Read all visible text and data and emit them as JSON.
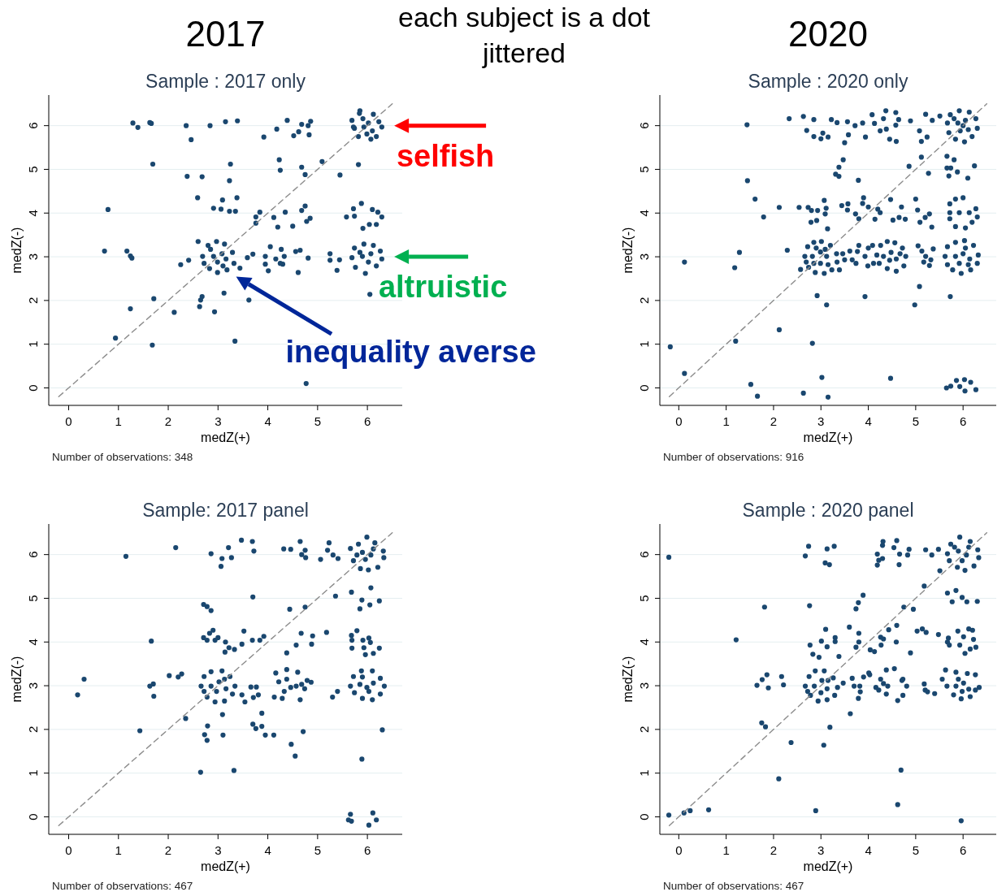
{
  "chart_data": [
    {
      "type": "scatter",
      "title": "2017",
      "subtitle": "Sample : 2017 only",
      "xlabel": "medZ(+)",
      "ylabel": "medZ(-)",
      "xlim": [
        -0.4,
        6.7
      ],
      "ylim": [
        -0.4,
        6.7
      ],
      "xticks": [
        0,
        1,
        2,
        3,
        4,
        5,
        6
      ],
      "yticks": [
        0,
        1,
        2,
        3,
        4,
        5,
        6
      ],
      "grid": "y",
      "annotations": [
        "Number of observations:  348",
        "each subject is a dot jittered",
        {
          "text": "selfish",
          "x": 6,
          "y": 6
        },
        {
          "text": "altruistic",
          "x": 6,
          "y": 3
        },
        "inequality averse"
      ],
      "series": [
        {
          "type": "scatter",
          "color": "#1a476f",
          "marker": "circle",
          "x": [
            1.29,
            1.39,
            1.63,
            1.66,
            2.36,
            2.84,
            3.15,
            3.39,
            2.46,
            3.92,
            4.18,
            4.39,
            4.68,
            4.81,
            4.86,
            4.52,
            4.62,
            4.83,
            5.85,
            5.69,
            5.74,
            5.91,
            6.12,
            6.23,
            6.29,
            6.07,
            6.18,
            5.99,
            5.82,
            6.02,
            5.93,
            6.1,
            5.84,
            5.72,
            1.69,
            3.25,
            4.23,
            4.25,
            4.68,
            4.75,
            5.09,
            5.82,
            5.45,
            2.38,
            2.68,
            3.23,
            0.79,
            2.59,
            3.09,
            3.38,
            2.91,
            3.06,
            3.23,
            3.35,
            3.84,
            3.76,
            3.76,
            4.12,
            4.2,
            4.35,
            4.5,
            4.68,
            4.75,
            4.85,
            4.78,
            5.58,
            5.74,
            5.88,
            5.72,
            6.1,
            6.21,
            6.29,
            6.04,
            5.91,
            6.18,
            0.72,
            1.17,
            1.24,
            1.27,
            2.6,
            2.25,
            2.41,
            2.69,
            2.8,
            2.97,
            3.13,
            3.29,
            3.32,
            3.18,
            2.99,
            2.83,
            2.72,
            2.91,
            3.08,
            2.99,
            3.16,
            2.85,
            3.1,
            3.44,
            3.59,
            3.7,
            3.95,
            4.01,
            4.05,
            3.95,
            4.16,
            4.27,
            4.33,
            4.25,
            4.3,
            4.56,
            4.65,
            4.81,
            4.61,
            5.25,
            5.25,
            5.44,
            5.39,
            5.69,
            5.74,
            5.93,
            6.12,
            6.26,
            6.29,
            6.18,
            5.96,
            5.76,
            5.9,
            6.07,
            6.02,
            5.85,
            6.05,
            1.71,
            1.24,
            2.12,
            2.68,
            2.65,
            2.63,
            2.93,
            3.12,
            3.62,
            0.94,
            1.68,
            3.34,
            4.77
          ],
          "values": [
            6.06,
            5.96,
            6.07,
            6.05,
            6.0,
            6.0,
            6.09,
            6.11,
            5.68,
            5.74,
            5.92,
            6.12,
            6.03,
            6.0,
            6.1,
            5.77,
            5.86,
            5.79,
            6.34,
            6.12,
            5.94,
            6.16,
            6.26,
            6.09,
            5.97,
            5.69,
            5.75,
            5.81,
            5.75,
            6.06,
            5.97,
            5.88,
            6.28,
            5.97,
            5.12,
            5.12,
            5.22,
            4.98,
            5.05,
            4.88,
            5.18,
            5.11,
            4.87,
            4.84,
            4.83,
            4.74,
            4.08,
            4.35,
            4.3,
            4.35,
            4.11,
            4.09,
            4.04,
            4.04,
            4.02,
            3.91,
            3.77,
            3.9,
            3.68,
            4.02,
            3.7,
            4.06,
            4.16,
            3.88,
            3.81,
            3.91,
            3.93,
            4.22,
            4.1,
            4.08,
            4.02,
            3.91,
            3.74,
            3.65,
            3.74,
            3.13,
            3.13,
            3.02,
            2.97,
            3.35,
            2.82,
            2.92,
            3.01,
            3.26,
            3.35,
            3.29,
            3.1,
            2.85,
            2.7,
            2.64,
            2.73,
            2.85,
            3.01,
            3.07,
            2.88,
            2.95,
            3.17,
            2.79,
            2.74,
            2.98,
            3.06,
            3.01,
            2.68,
            3.23,
            2.83,
            2.95,
            3.17,
            3.01,
            2.85,
            2.83,
            3.12,
            3.15,
            2.97,
            2.64,
            3.07,
            2.92,
            2.93,
            2.69,
            2.98,
            3.2,
            3.29,
            3.26,
            3.13,
            2.95,
            2.79,
            2.62,
            2.76,
            3.01,
            3.07,
            2.88,
            3.1,
            2.14,
            2.04,
            1.81,
            1.73,
            2.09,
            2.01,
            1.86,
            1.74,
            2.17,
            2.01,
            1.14,
            0.98,
            1.07,
            0.1
          ]
        },
        {
          "type": "line",
          "color": "#8c8c8c",
          "line_style": "dashed",
          "x": [
            -0.2,
            6.5
          ],
          "values": [
            -0.2,
            6.5
          ]
        }
      ]
    },
    {
      "type": "scatter",
      "title": "2020",
      "subtitle": "Sample : 2020 only",
      "xlabel": "medZ(+)",
      "ylabel": "medZ(-)",
      "xlim": [
        -0.4,
        6.7
      ],
      "ylim": [
        -0.4,
        6.7
      ],
      "xticks": [
        0,
        1,
        2,
        3,
        4,
        5,
        6
      ],
      "yticks": [
        0,
        1,
        2,
        3,
        4,
        5,
        6
      ],
      "grid": "y",
      "annotations": [
        "Number of observations:  916"
      ],
      "series": [
        {
          "type": "scatter",
          "color": "#1a476f",
          "marker": "circle",
          "x": [
            1.44,
            2.33,
            2.63,
            2.85,
            3.22,
            3.34,
            3.56,
            3.72,
            3.88,
            4.08,
            4.13,
            4.37,
            4.32,
            4.58,
            4.58,
            4.64,
            4.89,
            5.21,
            5.35,
            5.51,
            2.7,
            2.85,
            3.0,
            3.04,
            3.15,
            3.5,
            3.58,
            3.94,
            4.25,
            4.38,
            4.45,
            4.59,
            5.08,
            5.12,
            5.24,
            5.67,
            5.73,
            5.92,
            6.13,
            6.27,
            6.3,
            6.19,
            6.03,
            5.84,
            5.7,
            5.89,
            6.05,
            6.11,
            5.94,
            5.81,
            6.0,
            3.47,
            3.38,
            3.31,
            3.38,
            3.79,
            1.45,
            4.86,
            5.12,
            5.27,
            5.66,
            5.81,
            5.66,
            5.74,
            5.7,
            5.88,
            6.1,
            6.24,
            1.61,
            1.79,
            2.12,
            2.54,
            2.73,
            2.8,
            2.93,
            3.07,
            3.11,
            3.09,
            2.79,
            2.91,
            3.14,
            3.44,
            3.57,
            3.56,
            3.73,
            3.8,
            3.9,
            3.88,
            4.0,
            4.14,
            4.2,
            4.25,
            4.47,
            4.52,
            4.65,
            4.7,
            4.78,
            5.0,
            5.04,
            5.09,
            5.2,
            5.29,
            5.34,
            5.72,
            5.72,
            5.72,
            5.84,
            6.0,
            5.92,
            5.84,
            6.05,
            6.13,
            6.27,
            6.19,
            6.3,
            0.12,
            1.18,
            1.28,
            2.29,
            2.57,
            2.66,
            2.72,
            2.85,
            3.01,
            3.2,
            3.33,
            3.34,
            3.23,
            3.07,
            2.88,
            2.74,
            2.82,
            2.99,
            3.12,
            2.99,
            2.85,
            3.15,
            2.9,
            3.09,
            2.69,
            3.46,
            3.5,
            3.61,
            3.66,
            3.74,
            3.77,
            3.8,
            3.93,
            3.99,
            4.0,
            4.09,
            4.11,
            4.18,
            4.26,
            4.4,
            4.56,
            4.72,
            4.79,
            4.75,
            4.59,
            4.4,
            4.23,
            4.32,
            4.48,
            4.59,
            4.45,
            4.67,
            3.39,
            5.05,
            5.13,
            5.21,
            5.17,
            5.29,
            5.32,
            5.37,
            5.62,
            5.67,
            5.84,
            6.03,
            6.22,
            6.32,
            6.3,
            6.16,
            5.96,
            5.78,
            5.67,
            5.84,
            6.0,
            6.14,
            5.92,
            6.05,
            6.11,
            2.92,
            3.12,
            3.93,
            5.08,
            4.98,
            5.73,
            -0.18,
            2.12,
            1.2,
            2.82,
            0.12,
            1.52,
            1.66,
            2.63,
            3.02,
            3.15,
            4.47,
            5.65,
            5.74,
            5.86,
            5.93,
            6.03,
            6.04,
            6.16,
            6.27
          ],
          "values": [
            6.02,
            6.16,
            6.21,
            6.14,
            6.14,
            6.07,
            6.09,
            6.0,
            6.06,
            6.25,
            6.05,
            6.34,
            6.16,
            6.3,
            6.01,
            6.14,
            6.11,
            6.26,
            6.12,
            6.22,
            5.89,
            5.75,
            5.7,
            5.83,
            5.74,
            5.61,
            5.79,
            5.74,
            5.88,
            5.92,
            5.69,
            5.64,
            5.88,
            5.64,
            5.74,
            6.06,
            6.25,
            6.34,
            6.31,
            6.16,
            5.94,
            5.75,
            5.63,
            5.69,
            5.84,
            6.06,
            6.12,
            5.91,
            5.88,
            6.16,
            6.0,
            5.22,
            5.05,
            4.89,
            4.84,
            4.75,
            4.74,
            5.07,
            5.28,
            4.91,
            5.3,
            5.22,
            5.03,
            5.03,
            4.85,
            4.94,
            4.8,
            5.08,
            4.32,
            3.91,
            4.13,
            4.13,
            4.13,
            4.06,
            4.06,
            4.29,
            4.11,
            3.98,
            3.79,
            3.83,
            3.64,
            4.17,
            4.21,
            4.07,
            3.98,
            3.87,
            4.35,
            4.22,
            4.14,
            3.86,
            4.09,
            4.01,
            4.31,
            3.84,
            3.9,
            4.14,
            3.86,
            4.32,
            4.07,
            3.79,
            3.9,
            3.98,
            3.68,
            4.21,
            4.01,
            3.87,
            4.32,
            4.35,
            4.01,
            3.69,
            3.66,
            4.01,
            4.1,
            3.79,
            3.91,
            2.88,
            2.75,
            3.1,
            3.15,
            2.71,
            3.01,
            3.23,
            3.33,
            3.35,
            3.26,
            3.07,
            2.88,
            2.7,
            2.62,
            2.64,
            2.76,
            3.01,
            3.11,
            3.01,
            2.85,
            2.85,
            2.82,
            3.2,
            3.17,
            2.88,
            3.07,
            2.93,
            3.13,
            2.93,
            2.85,
            3.12,
            3.26,
            3.01,
            2.79,
            3.2,
            3.26,
            2.85,
            3.04,
            3.26,
            3.35,
            3.32,
            3.2,
            3.01,
            2.79,
            2.67,
            2.73,
            2.85,
            3.01,
            3.1,
            2.95,
            2.92,
            3.07,
            2.7,
            3.25,
            3.13,
            3.01,
            2.88,
            2.8,
            2.93,
            3.18,
            3.01,
            3.23,
            3.33,
            3.37,
            3.26,
            3.04,
            2.85,
            2.7,
            2.62,
            2.7,
            2.82,
            3.01,
            3.07,
            2.95,
            2.85,
            3.2,
            2.82,
            2.11,
            1.9,
            2.09,
            2.32,
            1.9,
            2.09,
            0.94,
            1.33,
            1.07,
            1.02,
            0.33,
            0.08,
            -0.19,
            -0.12,
            0.24,
            -0.21,
            0.22,
            0.0,
            0.04,
            0.17,
            0.03,
            0.19,
            -0.07,
            0.13,
            -0.04
          ]
        },
        {
          "type": "line",
          "color": "#8c8c8c",
          "line_style": "dashed",
          "x": [
            -0.2,
            6.5
          ],
          "values": [
            -0.2,
            6.5
          ]
        }
      ]
    },
    {
      "type": "scatter",
      "subtitle": "Sample: 2017 panel",
      "xlabel": "medZ(+)",
      "ylabel": "medZ(-)",
      "xlim": [
        -0.4,
        6.7
      ],
      "ylim": [
        -0.4,
        6.7
      ],
      "xticks": [
        0,
        1,
        2,
        3,
        4,
        5,
        6
      ],
      "yticks": [
        0,
        1,
        2,
        3,
        4,
        5,
        6
      ],
      "grid": "y",
      "annotations": [
        "Number of observations:  467"
      ],
      "series": [
        {
          "type": "scatter",
          "color": "#1a476f",
          "marker": "circle",
          "x": [
            1.15,
            2.15,
            2.86,
            3.08,
            3.06,
            3.21,
            3.27,
            3.47,
            3.69,
            3.72,
            4.32,
            4.46,
            4.65,
            4.68,
            4.75,
            4.76,
            5.06,
            5.23,
            5.2,
            5.31,
            5.41,
            5.66,
            5.82,
            5.99,
            6.15,
            6.32,
            6.33,
            6.21,
            6.02,
            5.86,
            5.72,
            5.9,
            6.07,
            5.96,
            5.79,
            6.12,
            3.7,
            2.71,
            2.78,
            2.86,
            4.44,
            4.75,
            5.36,
            5.68,
            6.07,
            5.89,
            5.85,
            6.05,
            6.24,
            1.66,
            2.71,
            2.83,
            2.9,
            2.78,
            2.94,
            3.0,
            3.15,
            3.22,
            3.14,
            3.33,
            3.48,
            3.52,
            3.69,
            3.84,
            3.92,
            4.38,
            4.57,
            4.67,
            4.88,
            4.9,
            5.18,
            5.68,
            5.69,
            5.69,
            5.79,
            5.91,
            5.93,
            6.03,
            6.06,
            6.12,
            5.96,
            6.24,
            0.18,
            0.31,
            1.63,
            1.71,
            1.7,
            2.02,
            2.2,
            2.27,
            2.66,
            2.72,
            2.86,
            3.08,
            3.24,
            3.34,
            3.29,
            3.13,
            2.94,
            2.78,
            2.86,
            3.02,
            3.16,
            2.97,
            3.13,
            2.72,
            3.48,
            3.54,
            3.66,
            3.77,
            3.71,
            3.81,
            4.13,
            4.29,
            4.16,
            4.38,
            4.6,
            4.79,
            4.87,
            4.74,
            4.65,
            4.33,
            4.22,
            4.38,
            4.57,
            4.46,
            4.68,
            5.3,
            5.4,
            5.66,
            5.72,
            5.88,
            6.1,
            6.26,
            6.34,
            6.26,
            6.1,
            5.9,
            5.74,
            5.85,
            5.99,
            6.12,
            6.03,
            5.9,
            2.35,
            1.43,
            2.79,
            2.73,
            2.78,
            3.09,
            3.1,
            3.7,
            3.76,
            3.88,
            3.88,
            3.95,
            4.12,
            4.47,
            4.55,
            4.71,
            6.3,
            5.89,
            2.65,
            3.32,
            5.66,
            5.62,
            5.68,
            6.11,
            6.18,
            6.03
          ],
          "values": [
            5.96,
            6.16,
            6.02,
            5.91,
            5.73,
            6.16,
            5.93,
            6.33,
            6.3,
            6.08,
            6.13,
            6.12,
            6.3,
            6.0,
            6.1,
            5.93,
            5.89,
            6.27,
            6.1,
            5.99,
            5.91,
            6.14,
            6.24,
            6.4,
            6.27,
            6.08,
            5.93,
            5.71,
            5.65,
            5.68,
            5.86,
            6.05,
            5.99,
            5.89,
            5.99,
            6.13,
            5.03,
            4.86,
            4.81,
            4.72,
            4.75,
            4.8,
            5.05,
            5.14,
            5.24,
            4.96,
            4.76,
            4.85,
            4.94,
            4.02,
            4.1,
            4.2,
            4.27,
            4.04,
            4.04,
            4.1,
            4.0,
            3.87,
            3.77,
            3.83,
            3.95,
            4.25,
            4.04,
            4.04,
            4.13,
            3.75,
            3.93,
            4.2,
            3.95,
            4.14,
            4.22,
            4.15,
            4.04,
            3.86,
            4.26,
            4.04,
            3.87,
            4.09,
            3.99,
            3.74,
            3.71,
            3.86,
            2.79,
            3.15,
            2.99,
            2.76,
            3.04,
            3.23,
            3.2,
            3.27,
            2.99,
            3.21,
            3.32,
            3.34,
            3.21,
            2.99,
            2.81,
            2.65,
            2.63,
            2.74,
            2.99,
            3.09,
            2.93,
            2.87,
            3.15,
            2.87,
            2.79,
            2.63,
            2.97,
            2.97,
            2.73,
            2.79,
            2.74,
            2.71,
            3.29,
            3.37,
            3.31,
            3.12,
            3.08,
            2.93,
            2.68,
            2.87,
            3.09,
            3.15,
            2.99,
            2.96,
            3.03,
            2.74,
            2.87,
            2.99,
            3.21,
            3.34,
            3.34,
            3.17,
            2.99,
            2.81,
            2.68,
            2.71,
            2.84,
            3.03,
            2.96,
            3.06,
            2.87,
            3.2,
            2.25,
            1.97,
            2.08,
            1.88,
            1.75,
            2.34,
            1.87,
            2.12,
            2.02,
            2.37,
            2.07,
            1.87,
            1.87,
            1.66,
            1.39,
            1.95,
            1.99,
            1.32,
            1.02,
            1.06,
            0.06,
            -0.07,
            -0.1,
            0.09,
            -0.07,
            -0.19
          ]
        },
        {
          "type": "line",
          "color": "#8c8c8c",
          "line_style": "dashed",
          "x": [
            -0.2,
            6.5
          ],
          "values": [
            -0.2,
            6.5
          ]
        }
      ]
    },
    {
      "type": "scatter",
      "subtitle": "Sample : 2020 panel",
      "xlabel": "medZ(+)",
      "ylabel": "medZ(-)",
      "xlim": [
        -0.4,
        6.7
      ],
      "ylim": [
        -0.4,
        6.7
      ],
      "xticks": [
        0,
        1,
        2,
        3,
        4,
        5,
        6
      ],
      "yticks": [
        0,
        1,
        2,
        3,
        4,
        5,
        6
      ],
      "grid": "y",
      "annotations": [
        "Number of observations:  467"
      ],
      "series": [
        {
          "type": "scatter",
          "color": "#1a476f",
          "marker": "circle",
          "x": [
            -0.21,
            2.67,
            2.74,
            3.09,
            3.13,
            3.18,
            3.28,
            4.19,
            4.22,
            4.19,
            4.3,
            4.3,
            4.31,
            4.54,
            4.6,
            4.66,
            4.65,
            4.83,
            4.86,
            5.21,
            5.34,
            5.48,
            5.51,
            5.67,
            5.74,
            5.93,
            6.15,
            6.31,
            6.33,
            6.23,
            6.04,
            5.88,
            5.71,
            5.9,
            6.07,
            5.98,
            5.82,
            6.12,
            2.76,
            1.81,
            3.89,
            3.79,
            3.74,
            4.75,
            4.95,
            5.18,
            5.67,
            5.85,
            5.77,
            5.98,
            6.08,
            6.3,
            1.21,
            2.77,
            2.83,
            2.96,
            3.01,
            3.1,
            3.13,
            3.3,
            3.3,
            3.38,
            3.6,
            3.74,
            3.8,
            3.8,
            4.04,
            4.13,
            4.26,
            4.27,
            4.32,
            4.43,
            4.6,
            4.59,
            4.89,
            5.03,
            5.14,
            5.22,
            5.48,
            5.67,
            5.69,
            5.71,
            5.89,
            5.93,
            6.01,
            6.12,
            6.2,
            6.22,
            6.15,
            6.27,
            6.04,
            1.65,
            1.76,
            1.86,
            1.89,
            2.17,
            2.21,
            2.67,
            2.75,
            2.88,
            3.07,
            3.26,
            3.35,
            3.29,
            3.13,
            2.94,
            2.78,
            2.86,
            3.02,
            3.13,
            3.0,
            3.15,
            2.72,
            3.47,
            3.66,
            3.7,
            3.82,
            3.83,
            3.79,
            3.62,
            3.9,
            4.01,
            4.03,
            4.16,
            4.26,
            4.38,
            4.55,
            4.73,
            4.81,
            4.73,
            4.62,
            4.38,
            4.22,
            4.32,
            4.41,
            4.71,
            5.18,
            5.2,
            5.25,
            5.4,
            5.56,
            5.66,
            5.63,
            5.85,
            6.09,
            6.26,
            6.34,
            6.26,
            6.15,
            5.96,
            5.8,
            5.85,
            6.01,
            6.12,
            5.9,
            5.98,
            1.75,
            1.83,
            2.37,
            3.06,
            3.19,
            2.11,
            4.69,
            -0.21,
            0.11,
            0.24,
            0.63,
            2.89,
            4.62,
            5.96
          ],
          "values": [
            5.94,
            5.97,
            6.19,
            5.81,
            6.13,
            5.77,
            6.19,
            6.01,
            5.87,
            5.76,
            5.91,
            6.21,
            6.3,
            6.16,
            6.32,
            6.01,
            5.77,
            5.99,
            6.12,
            6.11,
            5.99,
            6.12,
            5.63,
            6.02,
            6.24,
            6.4,
            6.3,
            6.11,
            5.93,
            5.74,
            5.64,
            5.71,
            5.86,
            6.08,
            5.99,
            5.86,
            6.17,
            6.17,
            4.83,
            4.8,
            5.07,
            4.9,
            4.76,
            4.8,
            4.75,
            5.28,
            5.12,
            5.18,
            4.92,
            5.02,
            4.92,
            4.93,
            4.05,
            3.93,
            3.72,
            3.65,
            4.02,
            4.29,
            3.89,
            4.1,
            4.01,
            3.67,
            4.34,
            3.88,
            4.2,
            4.0,
            3.82,
            3.78,
            4.11,
            3.93,
            4.07,
            4.28,
            4.38,
            4.0,
            3.75,
            4.25,
            4.3,
            4.22,
            4.17,
            4.0,
            4.09,
            3.93,
            4.25,
            3.93,
            4.12,
            4.3,
            4.27,
            4.06,
            3.84,
            3.88,
            3.74,
            3.01,
            3.14,
            3.25,
            2.95,
            3.21,
            3.02,
            2.99,
            3.21,
            3.34,
            3.34,
            3.18,
            2.96,
            2.78,
            2.68,
            2.65,
            2.78,
            2.99,
            3.12,
            2.93,
            2.84,
            3.12,
            2.87,
            3.06,
            3.17,
            2.99,
            2.99,
            2.86,
            2.71,
            2.36,
            3.2,
            3.29,
            3.25,
            2.96,
            3.15,
            3.36,
            3.39,
            3.15,
            2.99,
            2.78,
            2.66,
            2.81,
            2.9,
            3.05,
            2.99,
            3.12,
            3.04,
            2.9,
            2.86,
            2.82,
            3.15,
            2.99,
            3.36,
            3.31,
            3.28,
            3.25,
            2.96,
            2.9,
            2.75,
            2.7,
            2.79,
            2.99,
            3.06,
            2.92,
            3.15,
            2.87,
            2.15,
            2.06,
            1.7,
            1.64,
            2.05,
            0.87,
            1.07,
            0.04,
            0.09,
            0.14,
            0.16,
            0.14,
            0.28,
            -0.09
          ]
        },
        {
          "type": "line",
          "color": "#8c8c8c",
          "line_style": "dashed",
          "x": [
            -0.2,
            6.5
          ],
          "values": [
            -0.2,
            6.5
          ]
        }
      ]
    }
  ]
}
